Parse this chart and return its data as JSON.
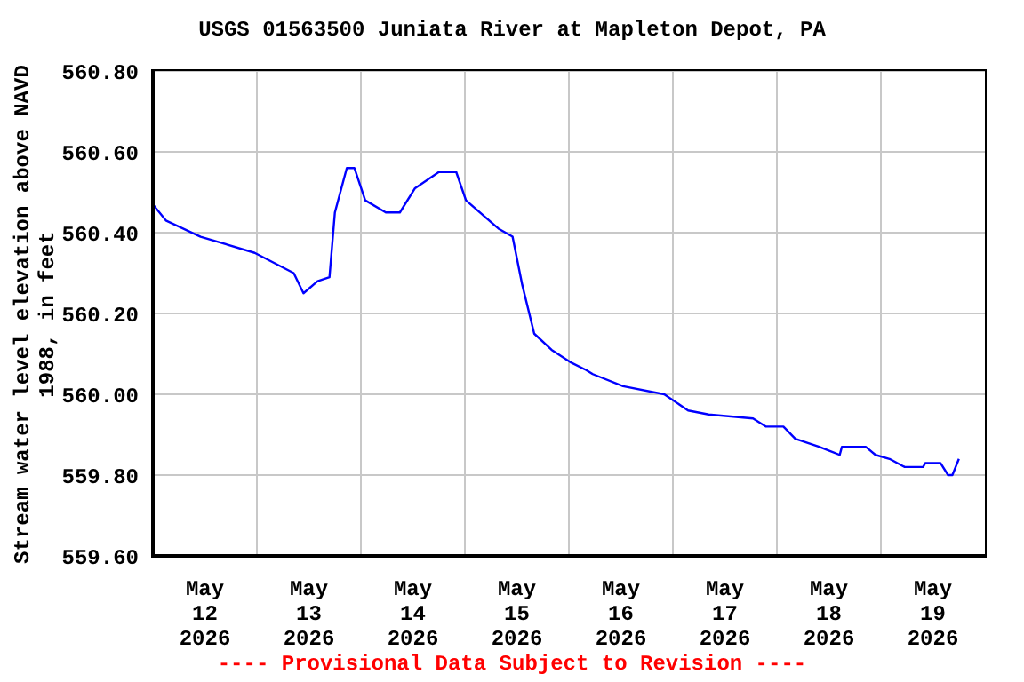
{
  "chart_data": {
    "type": "line",
    "title": "USGS 01563500 Juniata River at Mapleton Depot, PA",
    "ylabel": "Stream water level elevation above NAVD 1988, in feet",
    "annotations": [
      "---- Provisional Data Subject to Revision ----"
    ],
    "x": [
      "2026-05-12T00:00",
      "2026-05-12T03:00",
      "2026-05-12T11:00",
      "2026-05-12T23:30",
      "2026-05-13T08:30",
      "2026-05-13T10:45",
      "2026-05-13T14:00",
      "2026-05-13T16:45",
      "2026-05-13T18:00",
      "2026-05-13T20:45",
      "2026-05-13T22:30",
      "2026-05-14T01:00",
      "2026-05-14T05:45",
      "2026-05-14T09:00",
      "2026-05-14T12:30",
      "2026-05-14T18:00",
      "2026-05-14T22:00",
      "2026-05-15T00:15",
      "2026-05-15T07:45",
      "2026-05-15T11:00",
      "2026-05-15T13:15",
      "2026-05-15T16:00",
      "2026-05-15T20:00",
      "2026-05-16T00:15",
      "2026-05-16T04:00",
      "2026-05-16T05:30",
      "2026-05-16T12:30",
      "2026-05-16T22:00",
      "2026-05-17T03:30",
      "2026-05-17T08:15",
      "2026-05-17T18:30",
      "2026-05-17T21:30",
      "2026-05-18T01:30",
      "2026-05-18T04:15",
      "2026-05-18T09:45",
      "2026-05-18T14:30",
      "2026-05-18T15:00",
      "2026-05-18T20:30",
      "2026-05-18T22:45",
      "2026-05-19T02:00",
      "2026-05-19T05:30",
      "2026-05-19T09:45",
      "2026-05-19T10:15",
      "2026-05-19T13:45",
      "2026-05-19T15:30",
      "2026-05-19T16:30",
      "2026-05-19T18:00"
    ],
    "series": [
      {
        "color": "#0000ff",
        "values": [
          560.47,
          560.43,
          560.39,
          560.35,
          560.3,
          560.25,
          560.28,
          560.29,
          560.45,
          560.56,
          560.56,
          560.48,
          560.45,
          560.45,
          560.51,
          560.55,
          560.55,
          560.48,
          560.41,
          560.39,
          560.27,
          560.15,
          560.11,
          560.08,
          560.06,
          560.05,
          560.02,
          560.0,
          559.96,
          559.95,
          559.94,
          559.92,
          559.92,
          559.89,
          559.87,
          559.85,
          559.87,
          559.87,
          559.85,
          559.84,
          559.82,
          559.82,
          559.83,
          559.83,
          559.8,
          559.8,
          559.84
        ]
      }
    ],
    "xlim": [
      "2026-05-12T00:00",
      "2026-05-20T00:00"
    ],
    "xticks": [
      {
        "value": "2026-05-12T12:00",
        "label": "May 12 2026"
      },
      {
        "value": "2026-05-13T00:00",
        "label": null
      },
      {
        "value": "2026-05-13T12:00",
        "label": "May 13 2026"
      },
      {
        "value": "2026-05-14T00:00",
        "label": null
      },
      {
        "value": "2026-05-14T12:00",
        "label": "May 14 2026"
      },
      {
        "value": "2026-05-15T00:00",
        "label": null
      },
      {
        "value": "2026-05-15T12:00",
        "label": "May 15 2026"
      },
      {
        "value": "2026-05-16T00:00",
        "label": null
      },
      {
        "value": "2026-05-16T12:00",
        "label": "May 16 2026"
      },
      {
        "value": "2026-05-17T00:00",
        "label": null
      },
      {
        "value": "2026-05-17T12:00",
        "label": "May 17 2026"
      },
      {
        "value": "2026-05-18T00:00",
        "label": null
      },
      {
        "value": "2026-05-18T12:00",
        "label": "May 18 2026"
      },
      {
        "value": "2026-05-19T00:00",
        "label": null
      },
      {
        "value": "2026-05-19T12:00",
        "label": "May 19 2026"
      }
    ],
    "ylim": [
      559.6,
      560.8
    ],
    "yticks": [
      {
        "value": 559.6,
        "label": "559.60"
      },
      {
        "value": 559.8,
        "label": "559.80"
      },
      {
        "value": 560.0,
        "label": "560.00"
      },
      {
        "value": 560.2,
        "label": "560.20"
      },
      {
        "value": 560.4,
        "label": "560.40"
      },
      {
        "value": 560.6,
        "label": "560.60"
      },
      {
        "value": 560.8,
        "label": "560.80"
      }
    ],
    "grid": true
  }
}
